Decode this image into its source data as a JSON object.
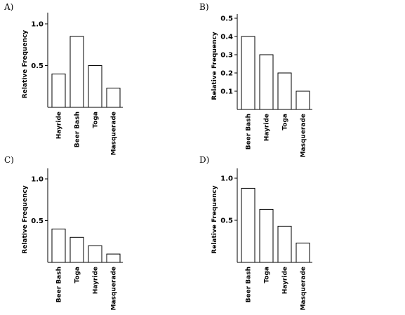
{
  "chart_data": [
    {
      "type": "bar",
      "panel_label": "A)",
      "categories": [
        "Hayride",
        "Beer Bash",
        "Toga",
        "Masquerade"
      ],
      "values": [
        0.4,
        0.85,
        0.5,
        0.23
      ],
      "ylabel": "Relative Frequency",
      "ylim": [
        0,
        1.1
      ],
      "yticks": [
        0.5,
        1.0
      ],
      "ytick_labels": [
        "0.5",
        "1.0"
      ],
      "grid": false
    },
    {
      "type": "bar",
      "panel_label": "B)",
      "categories": [
        "Beer Bash",
        "Hayride",
        "Toga",
        "Masquerade"
      ],
      "values": [
        0.4,
        0.3,
        0.2,
        0.1
      ],
      "ylabel": "Relative Frequency",
      "ylim": [
        0,
        0.5
      ],
      "yticks": [
        0.1,
        0.2,
        0.3,
        0.4,
        0.5
      ],
      "ytick_labels": [
        "0.1",
        "0.2",
        "0.3",
        "0.4",
        "0.5"
      ],
      "grid": false
    },
    {
      "type": "bar",
      "panel_label": "C)",
      "categories": [
        "Beer Bash",
        "Toga",
        "Hayride",
        "Masquerade"
      ],
      "values": [
        0.4,
        0.3,
        0.2,
        0.1
      ],
      "ylabel": "Relative Frequency",
      "ylim": [
        0,
        1.1
      ],
      "yticks": [
        0.5,
        1.0
      ],
      "ytick_labels": [
        "0.5",
        "1.0"
      ],
      "grid": false
    },
    {
      "type": "bar",
      "panel_label": "D)",
      "categories": [
        "Beer Bash",
        "Toga",
        "Hayride",
        "Masquerade"
      ],
      "values": [
        0.88,
        0.63,
        0.43,
        0.23
      ],
      "ylabel": "Relative Frequency",
      "ylim": [
        0,
        1.1
      ],
      "yticks": [
        0.5,
        1.0
      ],
      "ytick_labels": [
        "0.5",
        "1.0"
      ],
      "grid": false
    }
  ]
}
